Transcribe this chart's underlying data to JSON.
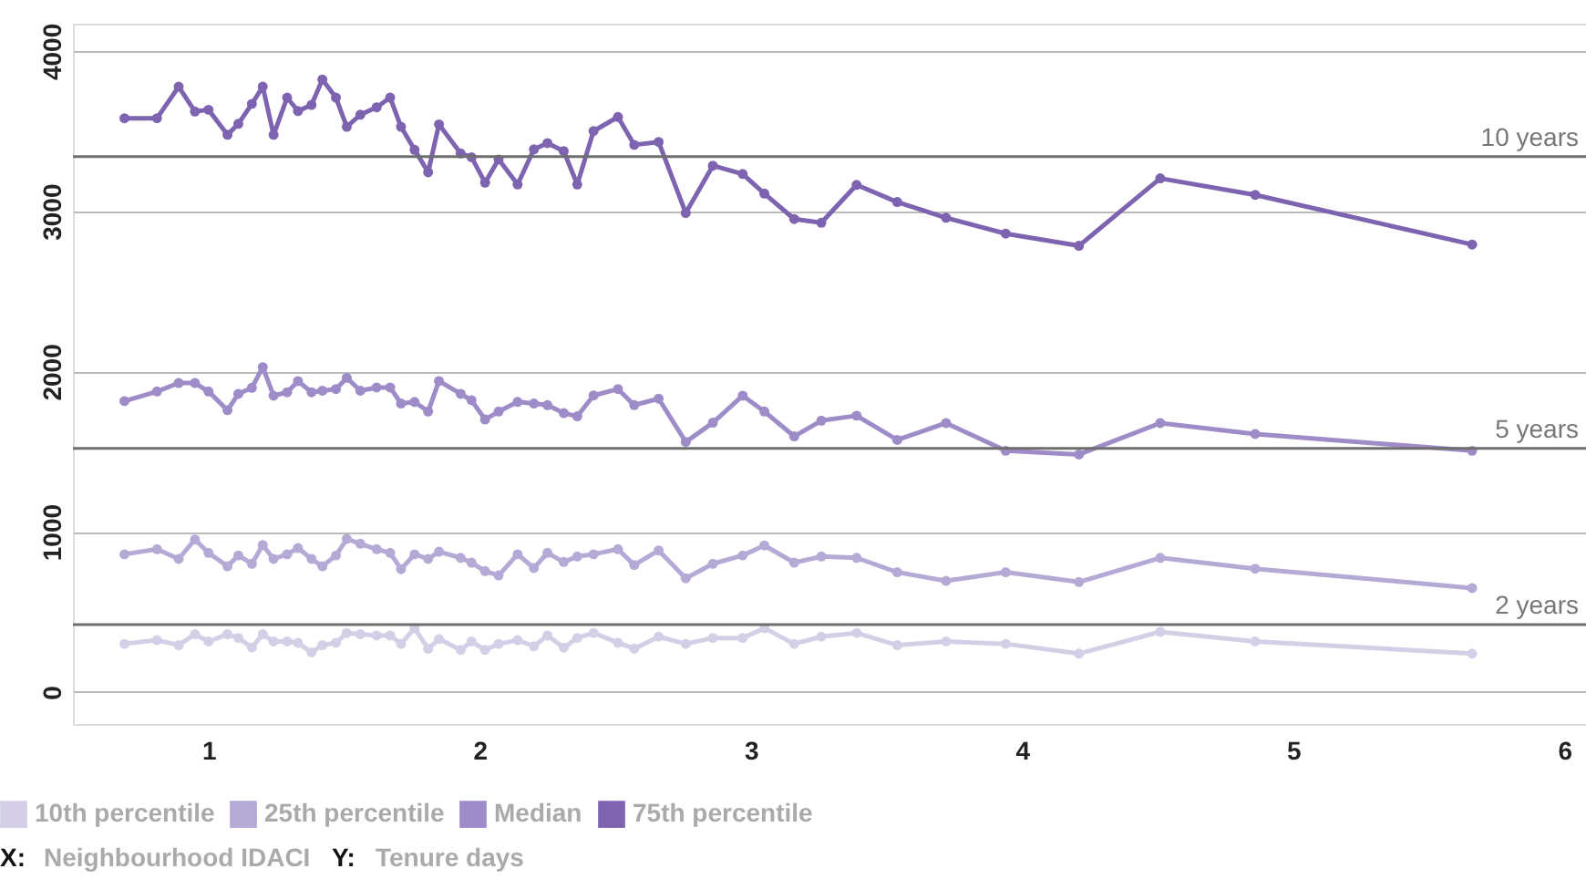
{
  "chart_data": {
    "type": "line",
    "annotations": [
      "X: Neighbourhood IDACI",
      "Y: Tenure days"
    ],
    "x": [
      0.69,
      0.81,
      0.89,
      0.95,
      1.0,
      1.07,
      1.11,
      1.16,
      1.2,
      1.24,
      1.29,
      1.33,
      1.38,
      1.42,
      1.47,
      1.51,
      1.56,
      1.62,
      1.67,
      1.71,
      1.76,
      1.81,
      1.85,
      1.93,
      1.97,
      2.02,
      2.07,
      2.14,
      2.2,
      2.25,
      2.31,
      2.36,
      2.42,
      2.51,
      2.57,
      2.66,
      2.76,
      2.86,
      2.97,
      3.05,
      3.16,
      3.26,
      3.39,
      3.54,
      3.72,
      3.94,
      4.21,
      4.51,
      4.86,
      5.66
    ],
    "series": [
      {
        "name": "10th percentile",
        "color": "#d4cfe6",
        "values": [
          300,
          323,
          292,
          360,
          315,
          360,
          337,
          277,
          360,
          315,
          315,
          307,
          247,
          292,
          307,
          368,
          360,
          352,
          352,
          300,
          398,
          270,
          330,
          262,
          315,
          262,
          300,
          323,
          285,
          352,
          277,
          337,
          368,
          307,
          270,
          345,
          300,
          337,
          337,
          398,
          300,
          345,
          368,
          292,
          315,
          300,
          239,
          375,
          315,
          239
        ]
      },
      {
        "name": "25th percentile",
        "color": "#b5a9d6",
        "values": [
          859,
          891,
          830,
          951,
          868,
          784,
          852,
          800,
          917,
          830,
          859,
          898,
          830,
          784,
          852,
          955,
          925,
          891,
          868,
          766,
          859,
          830,
          875,
          837,
          807,
          754,
          727,
          859,
          773,
          868,
          811,
          845,
          859,
          891,
          792,
          883,
          709,
          800,
          852,
          914,
          807,
          845,
          837,
          747,
          693,
          747,
          686,
          837,
          769,
          648
        ]
      },
      {
        "name": "Median",
        "color": "#9d8cc8",
        "values": [
          1815,
          1875,
          1928,
          1928,
          1875,
          1758,
          1860,
          1898,
          2027,
          1849,
          1870,
          1940,
          1870,
          1880,
          1890,
          1960,
          1880,
          1900,
          1900,
          1800,
          1810,
          1750,
          1940,
          1860,
          1820,
          1700,
          1750,
          1810,
          1800,
          1790,
          1740,
          1720,
          1850,
          1890,
          1790,
          1830,
          1560,
          1680,
          1849,
          1750,
          1595,
          1693,
          1724,
          1573,
          1678,
          1505,
          1482,
          1678,
          1610,
          1505
        ]
      },
      {
        "name": "75th percentile",
        "color": "#7e64b0",
        "values": [
          3580,
          3580,
          3777,
          3622,
          3633,
          3477,
          3545,
          3670,
          3777,
          3477,
          3709,
          3625,
          3663,
          3822,
          3709,
          3527,
          3602,
          3648,
          3709,
          3527,
          3383,
          3243,
          3542,
          3360,
          3337,
          3178,
          3323,
          3167,
          3386,
          3425,
          3375,
          3167,
          3500,
          3588,
          3414,
          3432,
          2989,
          3284,
          3232,
          3110,
          2951,
          2928,
          3164,
          3057,
          2959,
          2860,
          2784,
          3205,
          3102,
          2792
        ]
      }
    ],
    "xlim": [
      0.5,
      6.08
    ],
    "xticks": [
      1,
      2,
      3,
      4,
      5,
      6
    ],
    "ylim": [
      -200,
      4170
    ],
    "yticks": [
      0,
      1000,
      2000,
      3000,
      4000
    ],
    "ref_lines": [
      {
        "axis": "y",
        "value": 3340,
        "label": "10 years",
        "color": "#6e6e6e"
      },
      {
        "axis": "y",
        "value": 1520,
        "label": "5 years",
        "color": "#6e6e6e"
      },
      {
        "axis": "y",
        "value": 420,
        "label": "2 years",
        "color": "#6e6e6e"
      }
    ],
    "grid": "y",
    "legend": "bottom left",
    "marker": "circle",
    "line_style": "solid"
  }
}
